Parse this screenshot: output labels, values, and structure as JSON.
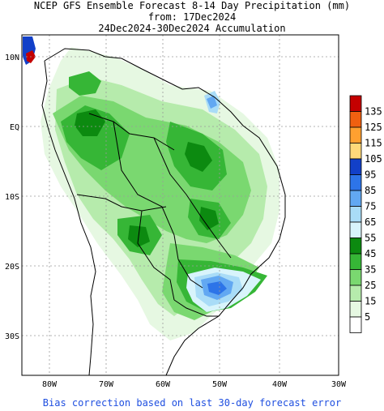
{
  "header": {
    "line1": "NCEP GFS Ensemble Forecast 8-14 Day Precipitation (mm)",
    "line2": "from: 17Dec2024",
    "line3": "24Dec2024-30Dec2024 Accumulation"
  },
  "axes": {
    "lat_labels": [
      "10N",
      "EQ",
      "10S",
      "20S",
      "30S"
    ],
    "lon_labels": [
      "80W",
      "70W",
      "60W",
      "50W",
      "40W",
      "30W"
    ]
  },
  "legend": {
    "levels": [
      {
        "label": "135",
        "color": "#c40000"
      },
      {
        "label": "125",
        "color": "#f06010"
      },
      {
        "label": "115",
        "color": "#ffa030"
      },
      {
        "label": "105",
        "color": "#ffd97a"
      },
      {
        "label": "95",
        "color": "#1240c8"
      },
      {
        "label": "85",
        "color": "#2d74e8"
      },
      {
        "label": "75",
        "color": "#62a8f2"
      },
      {
        "label": "65",
        "color": "#a9dcf7"
      },
      {
        "label": "55",
        "color": "#d8f4fb"
      },
      {
        "label": "45",
        "color": "#0c8a10"
      },
      {
        "label": "35",
        "color": "#36b636"
      },
      {
        "label": "25",
        "color": "#7ad870"
      },
      {
        "label": "15",
        "color": "#b6ebac"
      },
      {
        "label": "5",
        "color": "#e6f8e2"
      },
      {
        "label": "",
        "color": "#ffffff"
      }
    ]
  },
  "footer": {
    "note": "Bias correction based on last 30-day forecast error"
  }
}
